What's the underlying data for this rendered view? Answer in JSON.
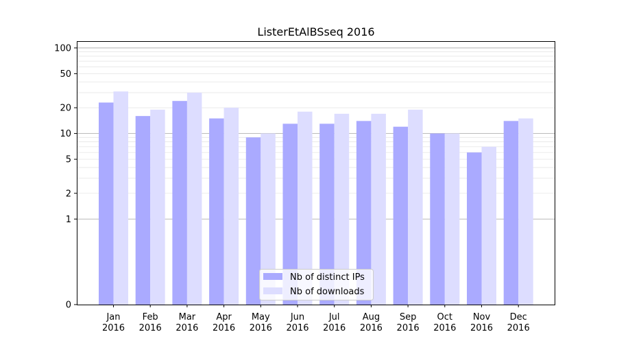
{
  "chart_data": {
    "type": "bar",
    "title": "ListerEtAlBSseq 2016",
    "xlabel": "",
    "ylabel": "",
    "y_scale": "symlog",
    "ylim": [
      0,
      120
    ],
    "yticks": [
      0,
      1,
      2,
      5,
      10,
      20,
      50,
      100
    ],
    "ytick_labels": [
      "0",
      "1",
      "2",
      "5",
      "10",
      "20",
      "50",
      "100"
    ],
    "categories": [
      [
        "Jan",
        "2016"
      ],
      [
        "Feb",
        "2016"
      ],
      [
        "Mar",
        "2016"
      ],
      [
        "Apr",
        "2016"
      ],
      [
        "May",
        "2016"
      ],
      [
        "Jun",
        "2016"
      ],
      [
        "Jul",
        "2016"
      ],
      [
        "Aug",
        "2016"
      ],
      [
        "Sep",
        "2016"
      ],
      [
        "Oct",
        "2016"
      ],
      [
        "Nov",
        "2016"
      ],
      [
        "Dec",
        "2016"
      ]
    ],
    "series": [
      {
        "name": "Nb of distinct IPs",
        "color": "#aaaaff",
        "values": [
          23,
          16,
          24,
          15,
          9,
          13,
          13,
          14,
          12,
          10,
          6,
          14
        ]
      },
      {
        "name": "Nb of downloads",
        "color": "#ddddff",
        "values": [
          31,
          19,
          30,
          20,
          10,
          18,
          17,
          17,
          19,
          10,
          7,
          15
        ]
      }
    ],
    "legend_position": "bottom-center",
    "grid": "horizontal"
  }
}
